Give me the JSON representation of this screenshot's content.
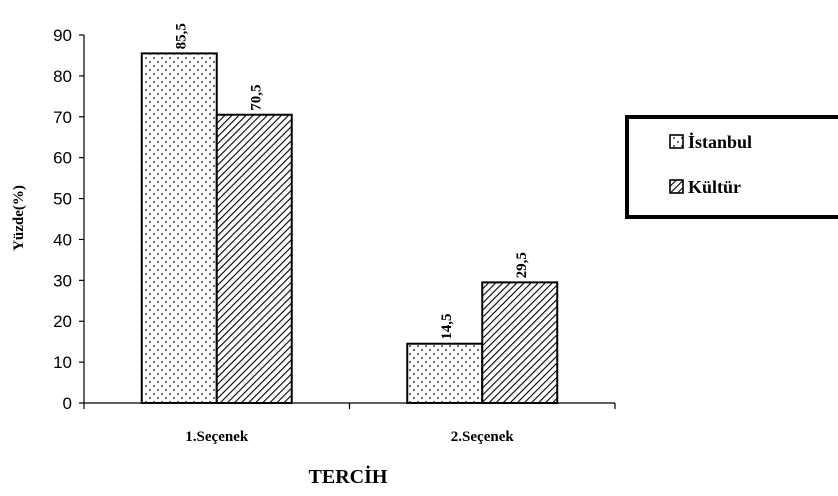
{
  "chart_data": {
    "type": "bar",
    "categories": [
      "1.Seçenek",
      "2.Seçenek"
    ],
    "series": [
      {
        "name": "İstanbul",
        "values": [
          85.5,
          14.5
        ],
        "labels": [
          "85,5",
          "14,5"
        ],
        "pattern": "dots"
      },
      {
        "name": "Kültür",
        "values": [
          70.5,
          29.5
        ],
        "labels": [
          "70,5",
          "29,5"
        ],
        "pattern": "diagonal"
      }
    ],
    "xlabel": "TERCİH",
    "ylabel": "Yüzde(%)",
    "ylim": [
      0,
      90
    ],
    "yticks": [
      0,
      10,
      20,
      30,
      40,
      50,
      60,
      70,
      80,
      90
    ],
    "grid": false,
    "legend_position": "right",
    "colors": {
      "bar_fill": "#ffffff",
      "stroke": "#000000"
    }
  }
}
